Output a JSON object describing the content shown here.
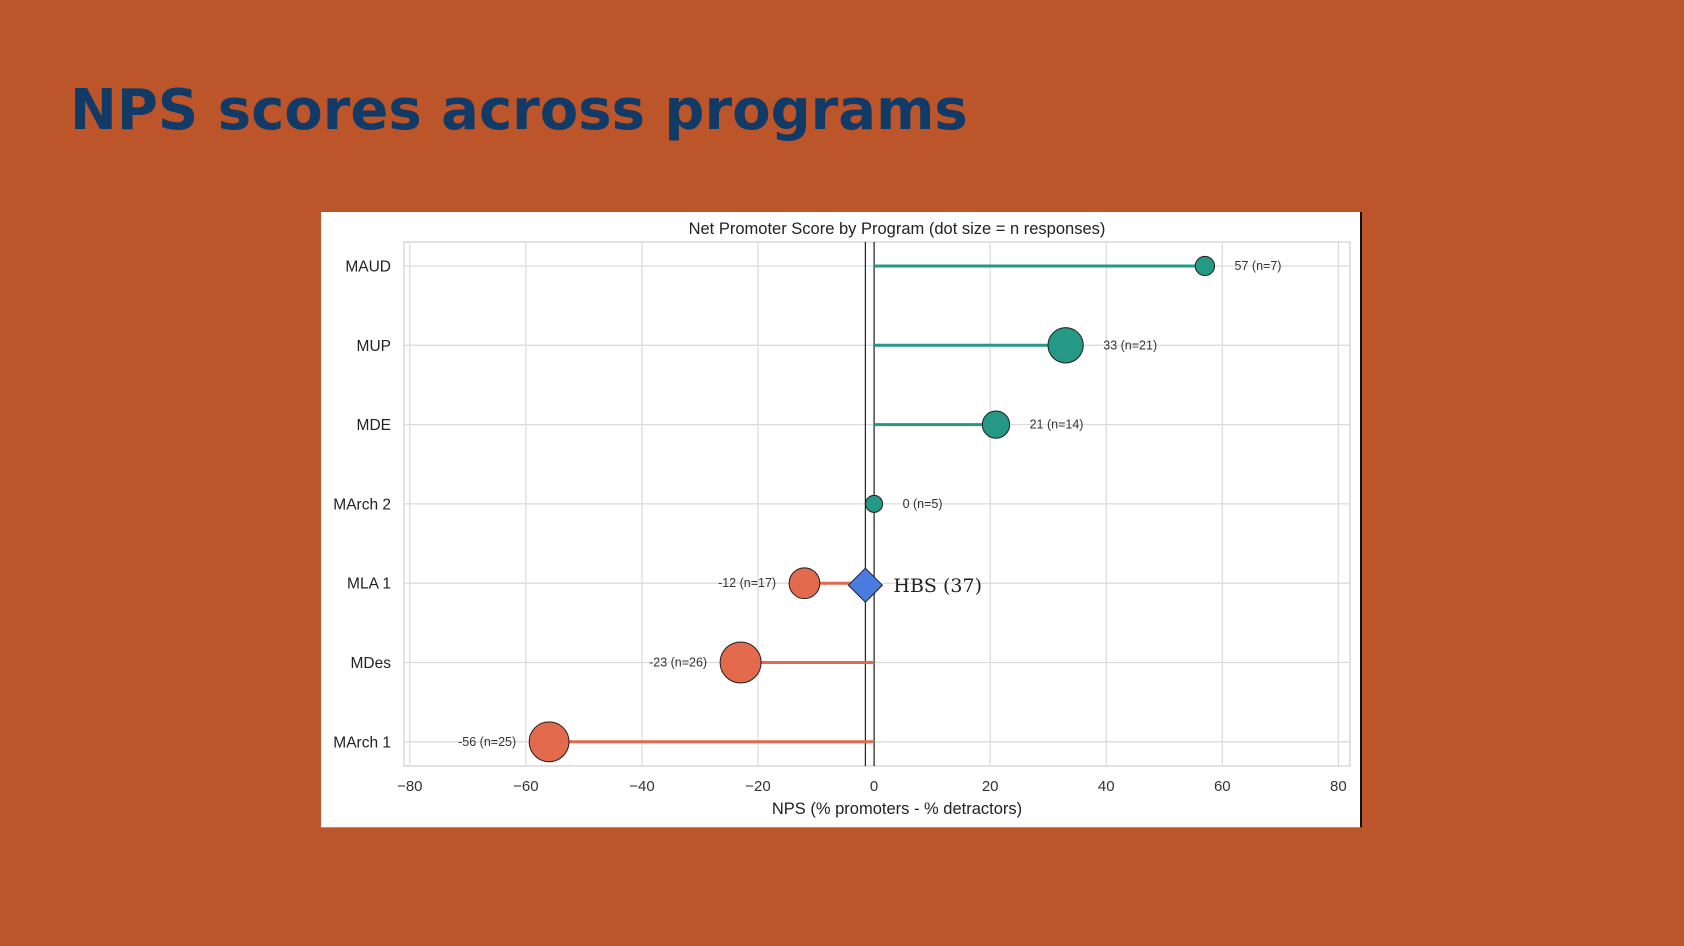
{
  "slide": {
    "title": "NPS scores across programs"
  },
  "chart_data": {
    "type": "lollipop",
    "title": "Net Promoter Score by Program  (dot size = n responses)",
    "xlabel": "NPS  (% promoters - % detractors)",
    "ylabel": "",
    "xlim": [
      -81,
      82
    ],
    "xticks": [
      -80,
      -60,
      -40,
      -20,
      0,
      20,
      40,
      60,
      80
    ],
    "xtick_labels": [
      "−80",
      "−60",
      "−40",
      "−20",
      "0",
      "20",
      "40",
      "60",
      "80"
    ],
    "grid": true,
    "categories": [
      "MAUD",
      "MUP",
      "MDE",
      "MArch 2",
      "MLA 1",
      "MDes",
      "MArch 1"
    ],
    "values": [
      57,
      33,
      21,
      0,
      -12,
      -23,
      -56
    ],
    "n": [
      7,
      21,
      14,
      5,
      17,
      26,
      25
    ],
    "value_labels": [
      "57  (n=7)",
      "33  (n=21)",
      "21  (n=14)",
      "0  (n=5)",
      "-12  (n=17)",
      "-23  (n=26)",
      "-56  (n=25)"
    ],
    "benchmark": {
      "label": "HBS (37)",
      "value": -1.5,
      "category": "MLA 1"
    },
    "colors": {
      "positive": "#269886",
      "negative": "#E36A4D",
      "benchmark": "#4A7BE0",
      "background": "#BC5529",
      "title": "#113B66"
    }
  }
}
